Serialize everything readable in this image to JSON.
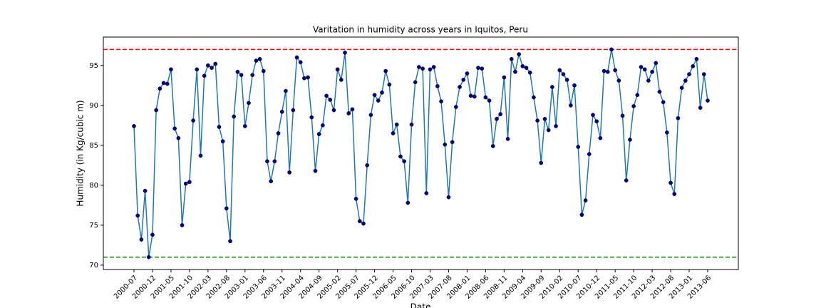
{
  "chart_data": {
    "type": "line",
    "title": "Varitation in humidity across years in Iquitos, Peru",
    "xlabel": "Date",
    "ylabel": "Humidity (in Kg/cubic m)",
    "categories": [
      "2000-07",
      null,
      null,
      null,
      null,
      "2000-12",
      null,
      null,
      null,
      null,
      "2001-05",
      null,
      null,
      null,
      null,
      "2001-10",
      null,
      null,
      null,
      null,
      "2002-03",
      null,
      null,
      null,
      null,
      "2002-08",
      null,
      null,
      null,
      null,
      "2003-01",
      null,
      null,
      null,
      null,
      "2003-06",
      null,
      null,
      null,
      null,
      "2003-11",
      null,
      null,
      null,
      null,
      "2004-04",
      null,
      null,
      null,
      null,
      "2004-09",
      null,
      null,
      null,
      null,
      "2005-02",
      null,
      null,
      null,
      null,
      "2005-07",
      null,
      null,
      null,
      null,
      "2005-12",
      null,
      null,
      null,
      null,
      "2006-05",
      null,
      null,
      null,
      null,
      "2006-10",
      null,
      null,
      null,
      null,
      "2007-03",
      null,
      null,
      null,
      null,
      "2007-08",
      null,
      null,
      null,
      null,
      "2008-01",
      null,
      null,
      null,
      null,
      "2008-06",
      null,
      null,
      null,
      null,
      "2008-11",
      null,
      null,
      null,
      null,
      "2009-04",
      null,
      null,
      null,
      null,
      "2009-09",
      null,
      null,
      null,
      null,
      "2010-02",
      null,
      null,
      null,
      null,
      "2010-07",
      null,
      null,
      null,
      null,
      "2010-12",
      null,
      null,
      null,
      null,
      "2011-05",
      null,
      null,
      null,
      null,
      "2011-10",
      null,
      null,
      null,
      null,
      "2012-03",
      null,
      null,
      null,
      null,
      "2012-08",
      null,
      null,
      null,
      null,
      "2013-01",
      null,
      null,
      null,
      null,
      "2013-06"
    ],
    "series": [
      {
        "color": "#1f77b4",
        "marker_color": "#00008b",
        "values": [
          87.4,
          76.2,
          73.2,
          79.3,
          71.0,
          73.8,
          89.4,
          92.1,
          92.8,
          92.7,
          94.5,
          87.1,
          85.9,
          75.0,
          80.2,
          80.4,
          88.1,
          94.5,
          83.7,
          93.7,
          95.0,
          94.7,
          95.2,
          87.3,
          85.5,
          77.1,
          73.0,
          88.6,
          94.2,
          93.8,
          87.4,
          90.3,
          93.8,
          95.6,
          95.8,
          94.3,
          83.0,
          80.5,
          83.0,
          86.5,
          89.2,
          91.8,
          81.6,
          89.4,
          96.0,
          95.4,
          93.4,
          93.5,
          88.5,
          81.8,
          86.4,
          87.5,
          91.2,
          90.7,
          89.4,
          94.5,
          93.2,
          96.6,
          89.0,
          89.5,
          78.3,
          75.5,
          75.2,
          82.5,
          88.8,
          91.3,
          90.6,
          91.6,
          94.3,
          92.6,
          86.5,
          87.6,
          83.6,
          83.0,
          77.8,
          87.6,
          92.9,
          94.8,
          94.6,
          79.0,
          94.5,
          94.8,
          92.4,
          90.5,
          85.1,
          78.5,
          85.4,
          89.8,
          92.3,
          93.2,
          94.0,
          91.2,
          91.1,
          94.7,
          94.6,
          91.0,
          90.6,
          84.9,
          88.3,
          88.9,
          93.5,
          85.8,
          95.8,
          94.2,
          96.4,
          94.9,
          94.7,
          94.1,
          91.0,
          88.1,
          82.8,
          88.3,
          86.9,
          92.3,
          87.4,
          94.4,
          93.9,
          93.2,
          90.0,
          92.5,
          84.8,
          76.3,
          78.1,
          83.9,
          88.8,
          88.0,
          85.9,
          94.3,
          94.2,
          97.0,
          94.4,
          93.1,
          88.7,
          80.6,
          85.7,
          89.9,
          91.3,
          94.8,
          94.5,
          93.1,
          94.2,
          95.3,
          91.7,
          90.4,
          86.6,
          80.3,
          78.9,
          88.4,
          92.2,
          93.1,
          93.9,
          94.9,
          95.8,
          89.7,
          93.9,
          90.6
        ]
      }
    ],
    "hlines": [
      {
        "value": 97,
        "color": "red"
      },
      {
        "value": 71,
        "color": "green"
      }
    ],
    "ylim": [
      69.45,
      98.55
    ],
    "yticks": [
      70,
      75,
      80,
      85,
      90,
      95
    ],
    "grid": false
  }
}
